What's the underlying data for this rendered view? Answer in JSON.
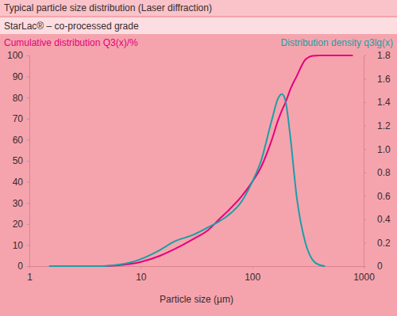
{
  "chart_data": {
    "type": "line",
    "title": "Typical particle size distribution (Laser diffraction)",
    "subtitle": "StarLac® – co-processed grade",
    "xlabel": "Particle size (µm)",
    "ylabel": "Cumulative distribution Q3(x)/%",
    "y2label": "Distribution density q3lg(x)",
    "log": "x",
    "grid": false,
    "xlim": [
      1,
      1000
    ],
    "xticks": [
      1,
      10,
      100,
      1000
    ],
    "ylim": [
      0,
      100
    ],
    "yticks": [
      0,
      10,
      20,
      30,
      40,
      50,
      60,
      70,
      80,
      90,
      100
    ],
    "y2lim": [
      0,
      1.8
    ],
    "y2ticks": [
      0,
      0.2,
      0.4,
      0.6,
      0.8,
      {
        "value": 1,
        "label": "1.0"
      },
      1.2,
      1.4,
      1.6,
      1.8
    ],
    "x": [
      1.5,
      2,
      3,
      4.5,
      6,
      8,
      10,
      15,
      20,
      30,
      40,
      50,
      60,
      80,
      100,
      120,
      150,
      170,
      185,
      200,
      220,
      250,
      300,
      350,
      400,
      450,
      500,
      700,
      800
    ],
    "series": [
      {
        "color": "#e5007d",
        "values": [
          null,
          null,
          null,
          0,
          0.3,
          1,
          2,
          5,
          8,
          13,
          17,
          22,
          26,
          33,
          40,
          47,
          60,
          69,
          74,
          78,
          84,
          90,
          98,
          99.8,
          100,
          100,
          100,
          100,
          100
        ]
      },
      {
        "color": "#1c9ea6",
        "axis": "y2",
        "values": [
          0,
          0,
          0,
          0,
          0.01,
          0.03,
          0.06,
          0.14,
          0.21,
          0.27,
          0.33,
          0.38,
          0.43,
          0.55,
          0.72,
          0.9,
          1.25,
          1.43,
          1.47,
          1.4,
          1.1,
          0.6,
          0.2,
          0.05,
          0.01,
          0,
          null,
          null,
          null
        ]
      }
    ]
  }
}
